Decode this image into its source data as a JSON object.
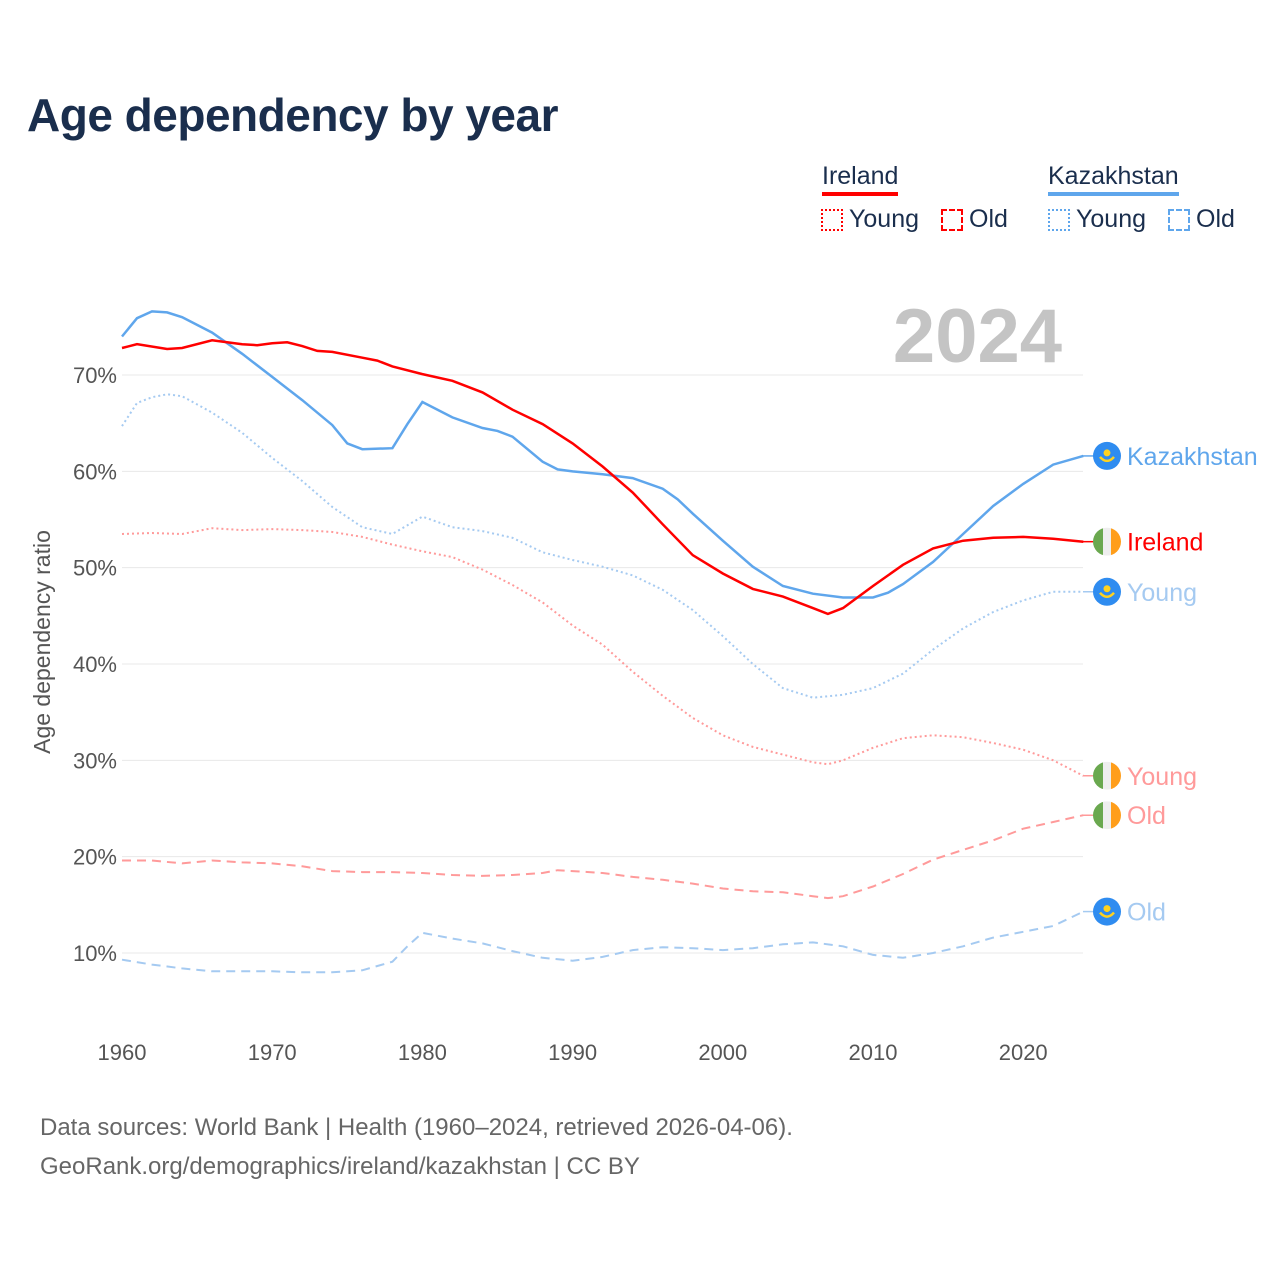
{
  "title": "Age dependency by year",
  "legend": {
    "countries": [
      {
        "name": "Ireland",
        "color": "#ff0000",
        "light": "#ff9a9a",
        "items": [
          "Young",
          "Old"
        ]
      },
      {
        "name": "Kazakhstan",
        "color": "#5fa6ec",
        "light": "#a5caf1",
        "items": [
          "Young",
          "Old"
        ]
      }
    ]
  },
  "year_watermark": "2024",
  "source": {
    "line1": "Data sources: World Bank | Health (1960–2024, retrieved 2026-04-06).",
    "line2": "GeoRank.org/demographics/ireland/kazakhstan | CC BY"
  },
  "chart_data": {
    "type": "line",
    "title": "Age dependency by year",
    "xlabel": "",
    "ylabel": "Age dependency ratio",
    "xlim": [
      1960,
      2024
    ],
    "ylim": [
      0,
      78
    ],
    "x_ticks": [
      "1960",
      "1970",
      "1980",
      "1990",
      "2000",
      "2010",
      "2020"
    ],
    "y_ticks": [
      "10%",
      "20%",
      "30%",
      "40%",
      "50%",
      "60%",
      "70%"
    ],
    "grid": true,
    "series": [
      {
        "name": "Kazakhstan",
        "label": "Kazakhstan",
        "country": "Kazakhstan",
        "style": "solid",
        "color": "#5fa6ec",
        "label_color": "#5fa6ec",
        "x": [
          1960,
          1961,
          1962,
          1963,
          1964,
          1966,
          1968,
          1970,
          1972,
          1974,
          1975,
          1976,
          1978,
          1979,
          1980,
          1982,
          1984,
          1985,
          1986,
          1988,
          1989,
          1990,
          1992,
          1994,
          1996,
          1997,
          1998,
          2000,
          2002,
          2004,
          2006,
          2008,
          2010,
          2011,
          2012,
          2014,
          2016,
          2018,
          2020,
          2022,
          2024
        ],
        "y": [
          74.0,
          75.9,
          76.6,
          76.5,
          76.0,
          74.4,
          72.2,
          69.8,
          67.4,
          64.8,
          62.9,
          62.3,
          62.4,
          64.9,
          67.2,
          65.6,
          64.5,
          64.2,
          63.6,
          61.0,
          60.2,
          60.0,
          59.7,
          59.3,
          58.2,
          57.1,
          55.6,
          52.8,
          50.1,
          48.1,
          47.3,
          46.9,
          46.9,
          47.4,
          48.3,
          50.6,
          53.5,
          56.4,
          58.7,
          60.7,
          61.6
        ]
      },
      {
        "name": "Ireland",
        "label": "Ireland",
        "country": "Ireland",
        "style": "solid",
        "color": "#ff0000",
        "label_color": "#ff0000",
        "x": [
          1960,
          1961,
          1963,
          1964,
          1966,
          1968,
          1969,
          1970,
          1971,
          1972,
          1973,
          1974,
          1976,
          1977,
          1978,
          1980,
          1982,
          1984,
          1986,
          1988,
          1990,
          1992,
          1994,
          1996,
          1998,
          2000,
          2002,
          2004,
          2006,
          2007,
          2008,
          2010,
          2012,
          2014,
          2016,
          2018,
          2020,
          2022,
          2024
        ],
        "y": [
          72.8,
          73.2,
          72.7,
          72.8,
          73.6,
          73.2,
          73.1,
          73.3,
          73.4,
          73.0,
          72.5,
          72.4,
          71.8,
          71.5,
          70.9,
          70.1,
          69.4,
          68.2,
          66.4,
          64.9,
          62.9,
          60.5,
          57.8,
          54.5,
          51.3,
          49.4,
          47.8,
          47.0,
          45.8,
          45.2,
          45.8,
          48.1,
          50.3,
          52.0,
          52.8,
          53.1,
          53.2,
          53.0,
          52.7
        ]
      },
      {
        "name": "Kazakhstan Young",
        "label": "Young",
        "country": "Kazakhstan",
        "style": "dotted",
        "color": "#a5caf1",
        "label_color": "#a5caf1",
        "x": [
          1960,
          1961,
          1962,
          1963,
          1964,
          1966,
          1968,
          1970,
          1972,
          1974,
          1976,
          1978,
          1980,
          1982,
          1984,
          1986,
          1988,
          1990,
          1992,
          1994,
          1996,
          1998,
          2000,
          2002,
          2004,
          2006,
          2008,
          2010,
          2012,
          2014,
          2016,
          2018,
          2020,
          2022,
          2024
        ],
        "y": [
          64.7,
          67.1,
          67.7,
          68.0,
          67.8,
          66.1,
          64.0,
          61.4,
          59.0,
          56.3,
          54.2,
          53.5,
          55.3,
          54.2,
          53.8,
          53.1,
          51.6,
          50.8,
          50.1,
          49.2,
          47.7,
          45.6,
          42.9,
          40.0,
          37.5,
          36.5,
          36.8,
          37.5,
          39.0,
          41.5,
          43.7,
          45.4,
          46.6,
          47.5,
          47.5
        ]
      },
      {
        "name": "Ireland Young",
        "label": "Young",
        "country": "Ireland",
        "style": "dotted",
        "color": "#ff9a9a",
        "label_color": "#ff9a9a",
        "x": [
          1960,
          1962,
          1964,
          1966,
          1968,
          1970,
          1972,
          1974,
          1976,
          1978,
          1980,
          1982,
          1984,
          1986,
          1988,
          1990,
          1992,
          1994,
          1996,
          1998,
          2000,
          2002,
          2004,
          2006,
          2007,
          2008,
          2010,
          2012,
          2014,
          2016,
          2018,
          2020,
          2022,
          2024
        ],
        "y": [
          53.5,
          53.6,
          53.5,
          54.1,
          53.9,
          54.0,
          53.9,
          53.7,
          53.2,
          52.4,
          51.7,
          51.1,
          49.8,
          48.2,
          46.4,
          44.0,
          42.0,
          39.2,
          36.7,
          34.4,
          32.6,
          31.4,
          30.6,
          29.8,
          29.6,
          30.0,
          31.3,
          32.3,
          32.6,
          32.4,
          31.8,
          31.1,
          30.0,
          28.4
        ]
      },
      {
        "name": "Ireland Old",
        "label": "Old",
        "country": "Ireland",
        "style": "dashed",
        "color": "#ff9a9a",
        "label_color": "#ff9a9a",
        "x": [
          1960,
          1962,
          1964,
          1966,
          1968,
          1970,
          1972,
          1974,
          1976,
          1978,
          1980,
          1982,
          1984,
          1986,
          1988,
          1989,
          1990,
          1992,
          1994,
          1996,
          1998,
          2000,
          2002,
          2004,
          2006,
          2007,
          2008,
          2010,
          2012,
          2014,
          2016,
          2018,
          2020,
          2022,
          2024
        ],
        "y": [
          19.6,
          19.6,
          19.3,
          19.6,
          19.4,
          19.3,
          19.0,
          18.5,
          18.4,
          18.4,
          18.3,
          18.1,
          18.0,
          18.1,
          18.3,
          18.6,
          18.5,
          18.3,
          17.9,
          17.6,
          17.2,
          16.7,
          16.4,
          16.3,
          15.9,
          15.7,
          15.9,
          16.9,
          18.2,
          19.7,
          20.7,
          21.7,
          22.9,
          23.6,
          24.3
        ]
      },
      {
        "name": "Kazakhstan Old",
        "label": "Old",
        "country": "Kazakhstan",
        "style": "dashed",
        "color": "#a5caf1",
        "label_color": "#a5caf1",
        "x": [
          1960,
          1962,
          1964,
          1966,
          1968,
          1970,
          1972,
          1974,
          1976,
          1978,
          1979,
          1980,
          1982,
          1984,
          1986,
          1988,
          1990,
          1992,
          1994,
          1996,
          1998,
          2000,
          2002,
          2004,
          2006,
          2008,
          2010,
          2012,
          2014,
          2016,
          2018,
          2020,
          2022,
          2024
        ],
        "y": [
          9.3,
          8.8,
          8.4,
          8.1,
          8.1,
          8.1,
          8.0,
          8.0,
          8.2,
          9.1,
          10.7,
          12.1,
          11.5,
          11.0,
          10.2,
          9.5,
          9.2,
          9.6,
          10.3,
          10.6,
          10.5,
          10.3,
          10.5,
          10.9,
          11.1,
          10.7,
          9.8,
          9.5,
          10.0,
          10.7,
          11.6,
          12.2,
          12.8,
          14.3
        ]
      }
    ]
  }
}
